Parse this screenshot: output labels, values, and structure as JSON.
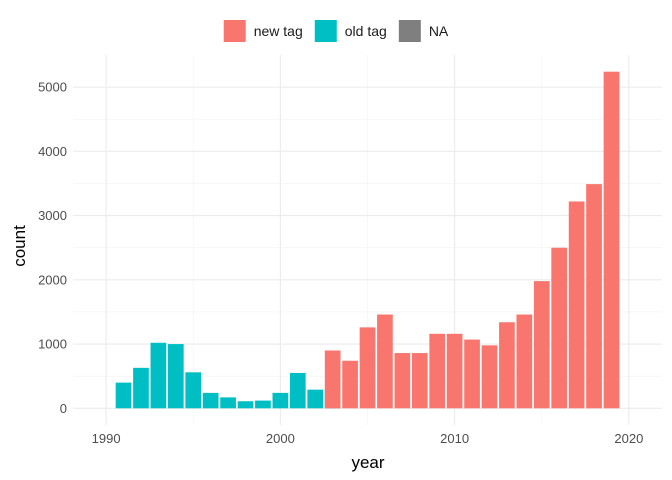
{
  "chart_data": {
    "type": "bar",
    "xlabel": "year",
    "ylabel": "count",
    "xlim": [
      1988.1,
      2021.9
    ],
    "ylim": [
      -260,
      5500
    ],
    "x_ticks": [
      1990,
      2000,
      2010,
      2020
    ],
    "y_ticks": [
      0,
      1000,
      2000,
      3000,
      4000,
      5000
    ],
    "grid": true,
    "legend_position": "top",
    "legend": [
      {
        "name": "new tag",
        "color": "#F8766D"
      },
      {
        "name": "old tag",
        "color": "#00BFC4"
      },
      {
        "name": "NA",
        "color": "#7F7F7F"
      }
    ],
    "series": [
      {
        "name": "old tag",
        "color": "#00BFC4",
        "x": [
          1991,
          1992,
          1993,
          1994,
          1995,
          1996,
          1997,
          1998,
          1999,
          2000,
          2001,
          2002,
          2003
        ],
        "values": [
          400,
          630,
          1020,
          1000,
          560,
          240,
          170,
          110,
          120,
          240,
          550,
          290,
          300
        ]
      },
      {
        "name": "new tag",
        "color": "#F8766D",
        "x": [
          2003,
          2004,
          2005,
          2006,
          2007,
          2008,
          2009,
          2010,
          2011,
          2012,
          2013,
          2014,
          2015,
          2016,
          2017,
          2018,
          2019
        ],
        "values": [
          900,
          740,
          1260,
          1460,
          860,
          860,
          1160,
          1160,
          1070,
          980,
          1340,
          1460,
          1980,
          2500,
          3220,
          3490,
          5240
        ]
      }
    ]
  }
}
